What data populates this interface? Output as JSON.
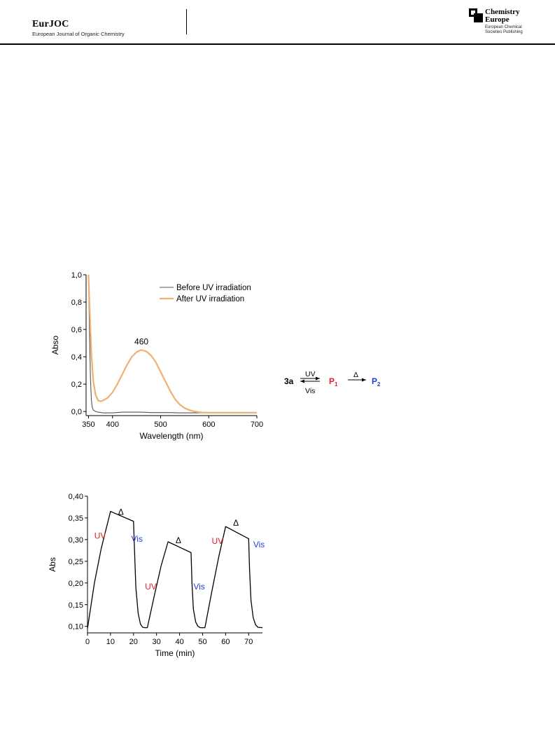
{
  "header": {
    "journal_name": "EurJOC",
    "journal_subtitle": "European Journal of Organic Chemistry",
    "publisher_title_line1": "Chemistry",
    "publisher_title_line2": "Europe",
    "publisher_sub_line1": "European Chemical",
    "publisher_sub_line2": "Societies Publishing"
  },
  "scheme": {
    "reactant": "3a",
    "forward_label": "UV",
    "reverse_label": "Vis",
    "product1": "P",
    "product1_sub": "1",
    "thermal_label": "Δ",
    "product2": "P",
    "product2_sub": "2",
    "colors": {
      "p1": "#e0202a",
      "p2": "#1f3fd6"
    }
  },
  "chart_data": [
    {
      "type": "line",
      "xlabel": "Wavelength (nm)",
      "ylabel": "Abso",
      "xlim": [
        345,
        700
      ],
      "ylim": [
        -0.03,
        1.0
      ],
      "xticks": [
        350,
        400,
        500,
        600,
        700
      ],
      "yticks": [
        "0,0",
        "0,2",
        "0,4",
        "0,6",
        "0,8",
        "1,0"
      ],
      "yticks_values": [
        0.0,
        0.2,
        0.4,
        0.6,
        0.8,
        1.0
      ],
      "grid": false,
      "legend_position": "top-right",
      "annotation": {
        "text": "460",
        "x": 460,
        "y": 0.45
      },
      "series": [
        {
          "name": "Before UV irradiation",
          "color": "#555555",
          "x": [
            350,
            352,
            354,
            356,
            358,
            360,
            365,
            370,
            380,
            400,
            420,
            440,
            460,
            480,
            500,
            520,
            540,
            560,
            580,
            600,
            650,
            700
          ],
          "y": [
            1.0,
            0.6,
            0.25,
            0.08,
            0.03,
            0.01,
            0.0,
            -0.005,
            -0.01,
            -0.01,
            -0.005,
            -0.005,
            -0.005,
            -0.008,
            -0.008,
            -0.008,
            -0.01,
            -0.01,
            -0.01,
            -0.01,
            -0.01,
            -0.01
          ]
        },
        {
          "name": "After UV irradiation",
          "color": "#f0b070",
          "x": [
            350,
            353,
            356,
            360,
            365,
            370,
            375,
            380,
            390,
            400,
            410,
            420,
            430,
            440,
            450,
            460,
            470,
            480,
            490,
            500,
            510,
            520,
            530,
            540,
            550,
            560,
            570,
            580,
            590,
            600,
            650,
            700
          ],
          "y": [
            1.0,
            0.7,
            0.42,
            0.22,
            0.12,
            0.08,
            0.075,
            0.08,
            0.1,
            0.14,
            0.2,
            0.27,
            0.34,
            0.4,
            0.435,
            0.45,
            0.44,
            0.41,
            0.36,
            0.29,
            0.22,
            0.15,
            0.09,
            0.05,
            0.025,
            0.01,
            0.0,
            -0.005,
            -0.008,
            -0.008,
            -0.008,
            -0.008
          ]
        }
      ]
    },
    {
      "type": "line",
      "xlabel": "Time (min)",
      "ylabel": "Abs",
      "xlim": [
        0,
        76
      ],
      "ylim": [
        0.085,
        0.4
      ],
      "xticks": [
        0,
        10,
        20,
        30,
        40,
        50,
        60,
        70
      ],
      "yticks": [
        "0,10",
        "0,15",
        "0,20",
        "0,25",
        "0,30",
        "0,35",
        "0,40"
      ],
      "yticks_values": [
        0.1,
        0.15,
        0.2,
        0.25,
        0.3,
        0.35,
        0.4
      ],
      "grid": false,
      "annotations": [
        {
          "text": "UV",
          "x": 5.5,
          "y": 0.302,
          "color": "#e0202a"
        },
        {
          "text": "Δ",
          "x": 14.5,
          "y": 0.357,
          "color": "#000000"
        },
        {
          "text": "Vis",
          "x": 21.5,
          "y": 0.295,
          "color": "#1f3fd6"
        },
        {
          "text": "UV",
          "x": 27.5,
          "y": 0.185,
          "color": "#e0202a"
        },
        {
          "text": "Δ",
          "x": 39.5,
          "y": 0.292,
          "color": "#000000"
        },
        {
          "text": "Vis",
          "x": 48.5,
          "y": 0.185,
          "color": "#1f3fd6"
        },
        {
          "text": "UV",
          "x": 56.5,
          "y": 0.29,
          "color": "#e0202a"
        },
        {
          "text": "Δ",
          "x": 64.5,
          "y": 0.332,
          "color": "#000000"
        },
        {
          "text": "Vis",
          "x": 74.5,
          "y": 0.282,
          "color": "#1f3fd6"
        }
      ],
      "series": [
        {
          "name": "",
          "color": "#000000",
          "x": [
            0,
            1,
            3,
            6,
            10,
            20,
            20.4,
            21,
            22,
            23,
            24,
            25,
            26,
            29,
            32,
            35,
            45,
            45.4,
            46,
            47,
            48,
            49,
            50,
            51,
            54,
            57,
            60,
            70,
            70.4,
            71,
            72,
            73,
            74,
            76
          ],
          "y": [
            0.095,
            0.13,
            0.2,
            0.28,
            0.365,
            0.342,
            0.28,
            0.19,
            0.13,
            0.105,
            0.098,
            0.097,
            0.097,
            0.17,
            0.24,
            0.295,
            0.27,
            0.2,
            0.14,
            0.11,
            0.1,
            0.097,
            0.097,
            0.097,
            0.18,
            0.26,
            0.33,
            0.302,
            0.23,
            0.16,
            0.12,
            0.104,
            0.098,
            0.097
          ]
        }
      ]
    }
  ]
}
